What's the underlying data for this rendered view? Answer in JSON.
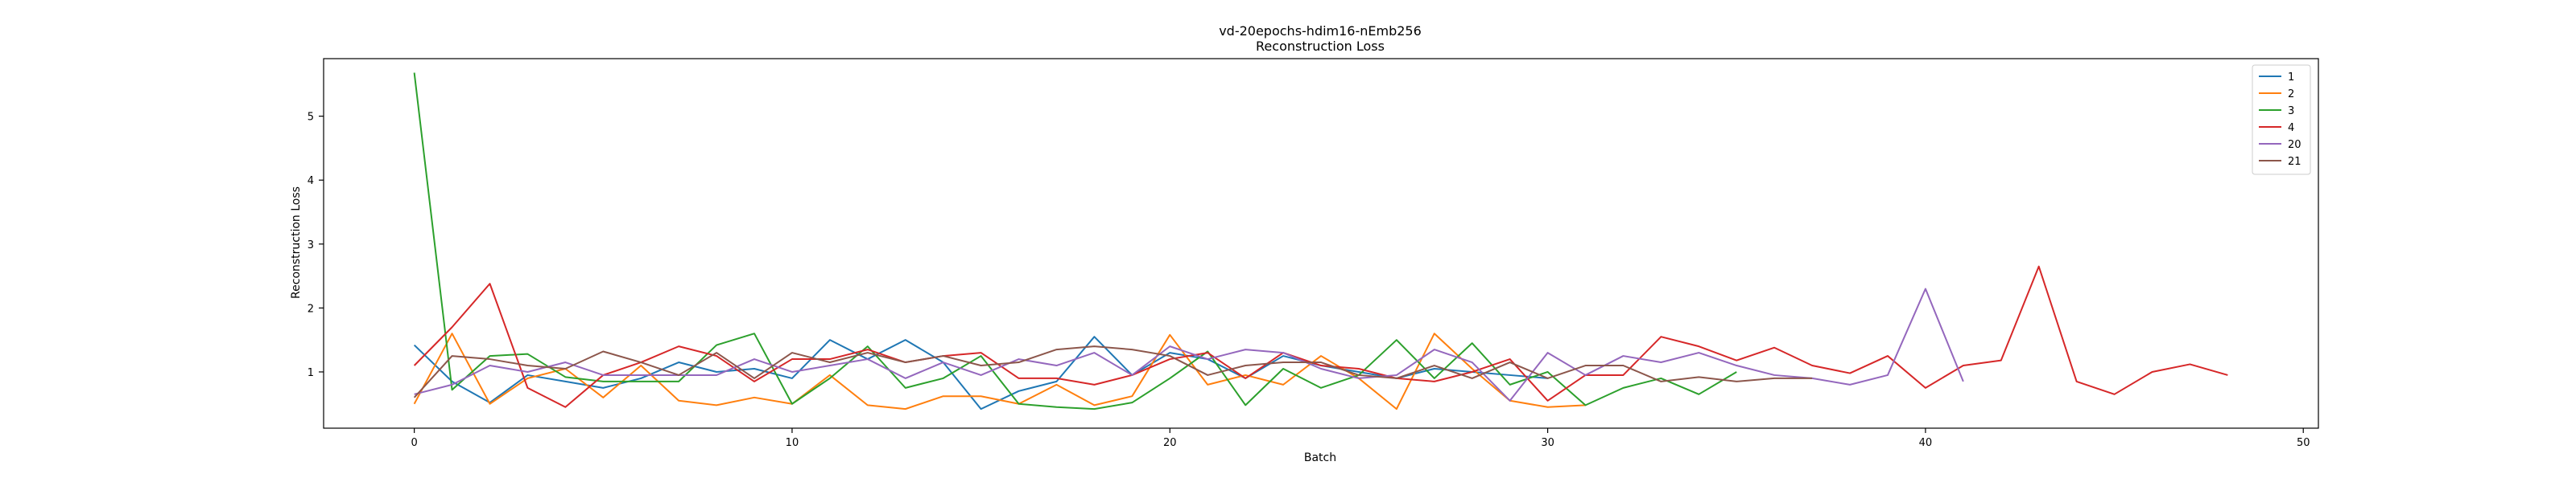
{
  "chart_data": {
    "type": "line",
    "title": "vd-20epochs-hdim16-nEmb256",
    "subtitle": "Reconstruction Loss",
    "xlabel": "Batch",
    "ylabel": "Reconstruction Loss",
    "xlim": [
      -2.4,
      50.4
    ],
    "ylim": [
      0.12,
      5.9
    ],
    "xticks": [
      0,
      10,
      20,
      30,
      40,
      50
    ],
    "yticks": [
      1,
      2,
      3,
      4,
      5
    ],
    "grid": false,
    "legend_position": "top-right",
    "series": [
      {
        "name": "1",
        "color": "#1f77b4",
        "values": [
          1.42,
          0.85,
          0.52,
          0.95,
          0.85,
          0.75,
          0.9,
          1.15,
          1.0,
          1.05,
          0.9,
          1.5,
          1.2,
          1.5,
          1.15,
          0.42,
          0.7,
          0.85,
          1.55,
          0.95,
          1.3,
          1.2,
          0.9,
          1.25,
          1.1,
          1.0,
          0.9,
          1.05,
          1.0,
          0.95,
          0.9
        ]
      },
      {
        "name": "2",
        "color": "#ff7f0e",
        "values": [
          0.5,
          1.6,
          0.5,
          0.9,
          1.05,
          0.6,
          1.1,
          0.55,
          0.48,
          0.6,
          0.5,
          0.95,
          0.48,
          0.42,
          0.62,
          0.62,
          0.5,
          0.8,
          0.48,
          0.62,
          1.58,
          0.8,
          0.95,
          0.8,
          1.25,
          0.9,
          0.42,
          1.6,
          1.05,
          0.55,
          0.45,
          0.48
        ]
      },
      {
        "name": "3",
        "color": "#2ca02c",
        "values": [
          5.68,
          0.72,
          1.25,
          1.28,
          0.92,
          0.85,
          0.85,
          0.85,
          1.42,
          1.6,
          0.5,
          0.9,
          1.4,
          0.75,
          0.9,
          1.25,
          0.5,
          0.45,
          0.42,
          0.52,
          0.9,
          1.32,
          0.48,
          1.05,
          0.75,
          0.95,
          1.5,
          0.9,
          1.45,
          0.8,
          1.0,
          0.48,
          0.75,
          0.9,
          0.65,
          1.0
        ]
      },
      {
        "name": "4",
        "color": "#d62728",
        "values": [
          1.1,
          1.7,
          2.38,
          0.75,
          0.45,
          0.95,
          1.15,
          1.4,
          1.25,
          0.85,
          1.2,
          1.2,
          1.35,
          1.15,
          1.25,
          1.3,
          0.9,
          0.9,
          0.8,
          0.95,
          1.2,
          1.3,
          0.9,
          1.3,
          1.1,
          1.05,
          0.9,
          0.85,
          1.0,
          1.2,
          0.55,
          0.95,
          0.95,
          1.55,
          1.4,
          1.18,
          1.38,
          1.1,
          0.98,
          1.25,
          0.75,
          1.1,
          1.18,
          2.65,
          0.85,
          0.65,
          1.0,
          1.12,
          0.95
        ]
      },
      {
        "name": "20",
        "color": "#9467bd",
        "values": [
          0.65,
          0.8,
          1.1,
          1.0,
          1.15,
          0.95,
          0.95,
          0.95,
          0.95,
          1.2,
          1.0,
          1.1,
          1.2,
          0.9,
          1.15,
          0.95,
          1.2,
          1.1,
          1.3,
          0.95,
          1.4,
          1.2,
          1.35,
          1.3,
          1.05,
          0.9,
          0.95,
          1.35,
          1.15,
          0.55,
          1.3,
          0.95,
          1.25,
          1.15,
          1.3,
          1.1,
          0.95,
          0.9,
          0.8,
          0.95,
          2.3,
          0.85
        ]
      },
      {
        "name": "21",
        "color": "#8c564b",
        "values": [
          0.6,
          1.25,
          1.2,
          1.1,
          1.05,
          1.32,
          1.15,
          0.95,
          1.3,
          0.9,
          1.3,
          1.15,
          1.3,
          1.15,
          1.25,
          1.1,
          1.15,
          1.35,
          1.4,
          1.35,
          1.25,
          0.95,
          1.1,
          1.15,
          1.15,
          0.95,
          0.9,
          1.1,
          0.9,
          1.15,
          0.9,
          1.1,
          1.1,
          0.85,
          0.92,
          0.85,
          0.9,
          0.9
        ]
      }
    ]
  }
}
